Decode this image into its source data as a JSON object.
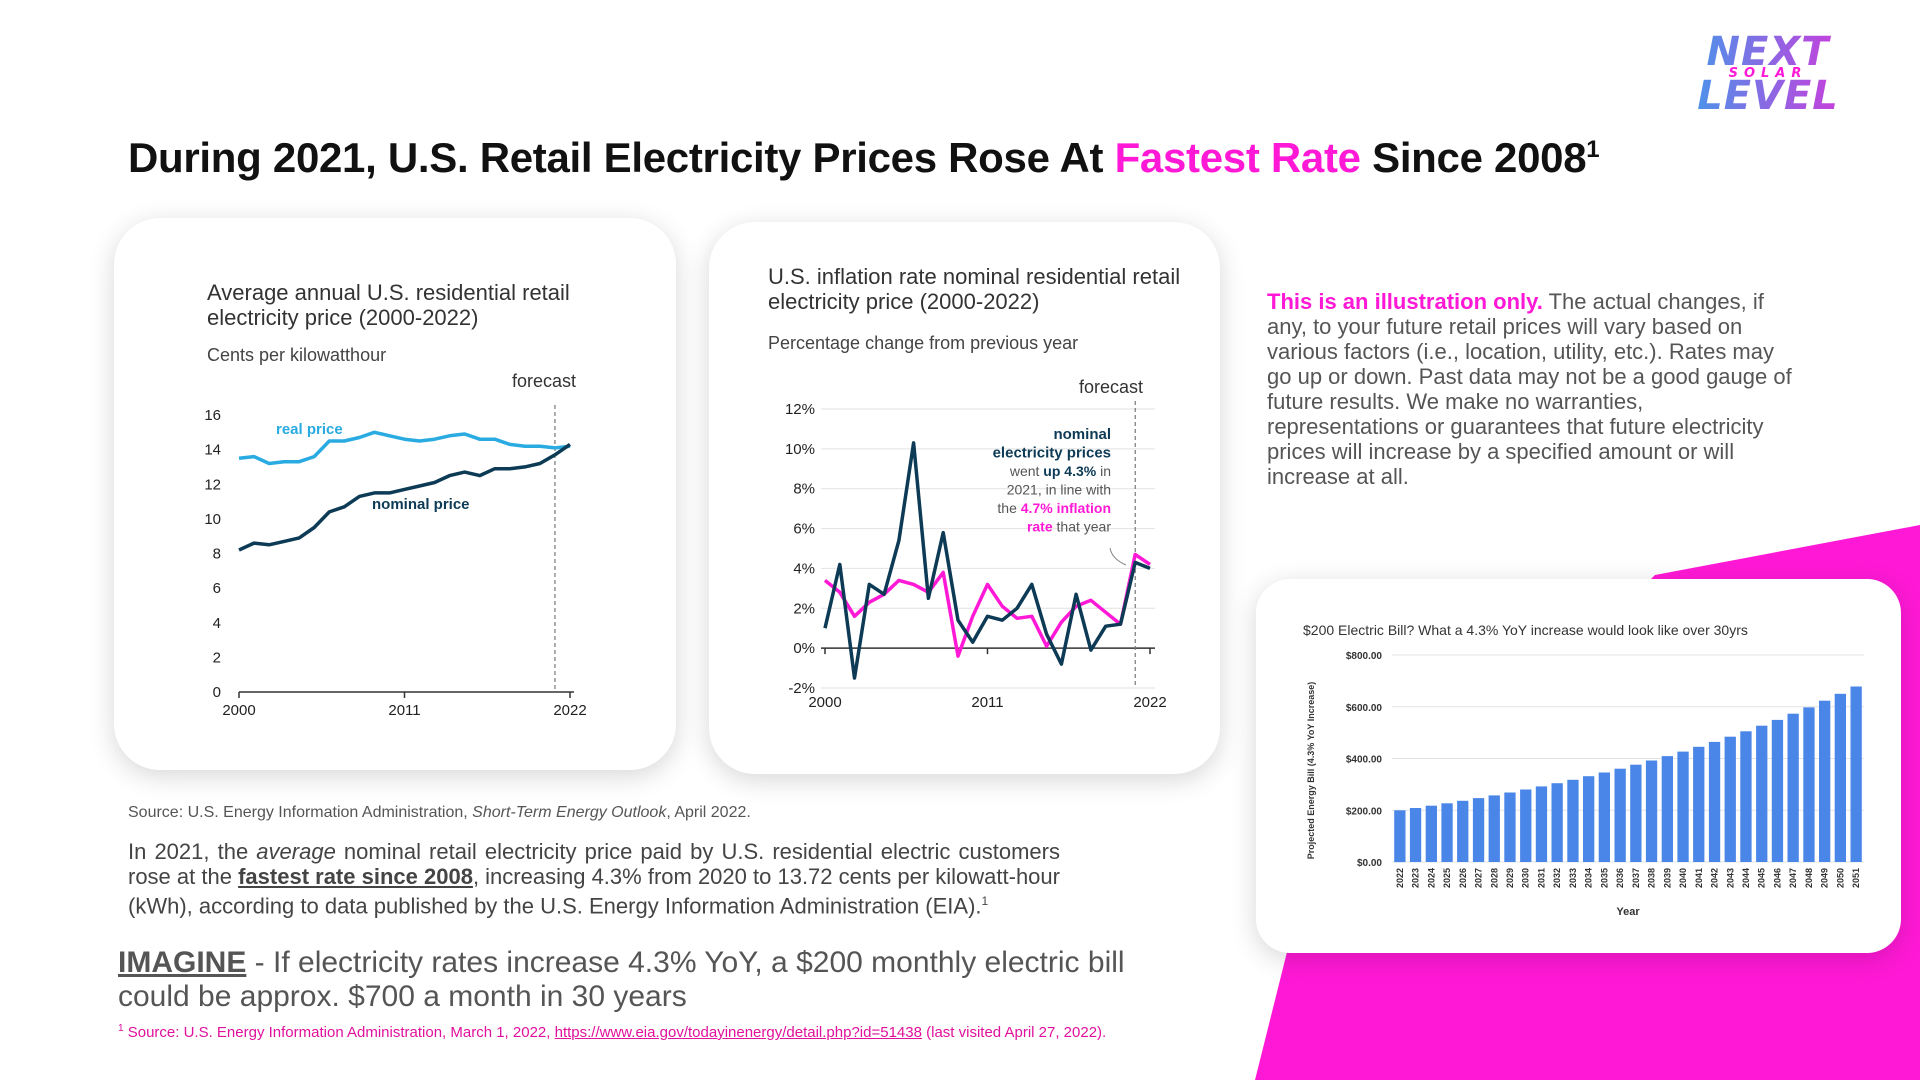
{
  "brand": {
    "name": "NEXT LEVEL",
    "sub": "SOLAR"
  },
  "headline": {
    "pre": "During 2021, U.S. Retail Electricity Prices Rose At ",
    "highlight": "Fastest Rate",
    "post": " Since 2008",
    "sup": "1"
  },
  "colors": {
    "accent": "#ff19d6",
    "real_price": "#29abe2",
    "nominal": "#0d3a55",
    "bars": "#4a86e8",
    "footnote": "#e0119d"
  },
  "chart_data": [
    {
      "type": "line",
      "title": "Average annual U.S. residential retail electricity price (2000-2022)",
      "subtitle": "Cents per kilowatthour",
      "annotation": "forecast",
      "xticks": [
        "2000",
        "2011",
        "2022"
      ],
      "ylim": [
        0,
        16
      ],
      "yticks": [
        0,
        2,
        4,
        6,
        8,
        10,
        12,
        14,
        16
      ],
      "x": [
        2000,
        2001,
        2002,
        2003,
        2004,
        2005,
        2006,
        2007,
        2008,
        2009,
        2010,
        2011,
        2012,
        2013,
        2014,
        2015,
        2016,
        2017,
        2018,
        2019,
        2020,
        2021,
        2022
      ],
      "series": [
        {
          "name": "real price",
          "values": [
            13.5,
            13.6,
            13.2,
            13.3,
            13.3,
            13.6,
            14.5,
            14.5,
            14.7,
            15.0,
            14.8,
            14.6,
            14.5,
            14.6,
            14.8,
            14.9,
            14.6,
            14.6,
            14.3,
            14.2,
            14.2,
            14.1,
            14.2
          ]
        },
        {
          "name": "nominal price",
          "values": [
            8.2,
            8.6,
            8.5,
            8.7,
            8.9,
            9.5,
            10.4,
            10.7,
            11.3,
            11.5,
            11.5,
            11.7,
            11.9,
            12.1,
            12.5,
            12.7,
            12.5,
            12.9,
            12.9,
            13.0,
            13.2,
            13.7,
            14.3
          ]
        }
      ],
      "grid": false,
      "forecast_from": 2021
    },
    {
      "type": "line",
      "title": "U.S. inflation rate nominal residential retail electricity price (2000-2022)",
      "subtitle": "Percentage change from previous year",
      "annotation": "forecast",
      "xticks": [
        "2000",
        "2011",
        "2022"
      ],
      "ylim": [
        -2,
        12
      ],
      "yticks": [
        "-2%",
        "0%",
        "2%",
        "4%",
        "6%",
        "8%",
        "10%",
        "12%"
      ],
      "x": [
        2000,
        2001,
        2002,
        2003,
        2004,
        2005,
        2006,
        2007,
        2008,
        2009,
        2010,
        2011,
        2012,
        2013,
        2014,
        2015,
        2016,
        2017,
        2018,
        2019,
        2020,
        2021,
        2022
      ],
      "series": [
        {
          "name": "nominal electricity prices",
          "values": [
            1.0,
            4.2,
            -1.5,
            3.2,
            2.7,
            5.4,
            10.3,
            2.5,
            5.8,
            1.4,
            0.3,
            1.6,
            1.4,
            2.0,
            3.2,
            0.7,
            -0.8,
            2.7,
            -0.1,
            1.1,
            1.2,
            4.3,
            4.0
          ]
        },
        {
          "name": "inflation rate",
          "values": [
            3.4,
            2.8,
            1.6,
            2.3,
            2.7,
            3.4,
            3.2,
            2.8,
            3.8,
            -0.4,
            1.6,
            3.2,
            2.1,
            1.5,
            1.6,
            0.1,
            1.3,
            2.1,
            2.4,
            1.8,
            1.2,
            4.7,
            4.2
          ]
        }
      ],
      "callout": {
        "l1": "nominal",
        "l2": "electricity prices",
        "l3a": "went ",
        "l3b": "up 4.3%",
        "l3c": " in",
        "l4": "2021, in line with",
        "l5a": "the ",
        "l5b": "4.7% inflation",
        "l6a": "rate",
        "l6b": " that year"
      },
      "grid": true,
      "forecast_from": 2021
    },
    {
      "type": "bar",
      "title": "$200 Electric Bill? What a 4.3% YoY increase would look like over 30yrs",
      "xlabel": "Year",
      "ylabel": "Projected Energy Bill (4.3% YoY Increase)",
      "ylim": [
        0,
        800
      ],
      "yticks": [
        "$0.00",
        "$200.00",
        "$400.00",
        "$600.00",
        "$800.00"
      ],
      "categories": [
        "2022",
        "2023",
        "2024",
        "2025",
        "2026",
        "2027",
        "2028",
        "2029",
        "2030",
        "2031",
        "2032",
        "2033",
        "2034",
        "2035",
        "2036",
        "2037",
        "2038",
        "2039",
        "2040",
        "2041",
        "2042",
        "2043",
        "2044",
        "2045",
        "2046",
        "2047",
        "2048",
        "2049",
        "2050",
        "2051"
      ],
      "values": [
        200.0,
        208.6,
        217.57,
        226.93,
        236.69,
        246.86,
        257.48,
        268.55,
        280.1,
        292.14,
        304.7,
        317.81,
        331.47,
        345.73,
        360.59,
        376.1,
        392.27,
        409.14,
        426.73,
        445.08,
        464.22,
        484.18,
        505.0,
        526.72,
        549.37,
        572.99,
        597.63,
        623.33,
        650.13,
        678.09
      ]
    }
  ],
  "source_line": {
    "pre": "Source: U.S. Energy Information Administration, ",
    "em": "Short-Term Energy Outlook",
    "post": ", April 2022."
  },
  "paragraph": {
    "p1": "In 2021, the ",
    "em": "average",
    "p2": " nominal retail electricity price paid by U.S. residential electric customers rose at the ",
    "u": "fastest rate since 2008",
    "p3": ", increasing 4.3% from 2020 to 13.72 cents per kilowatt-hour (kWh), according to data published by the U.S. Energy Information Administration (EIA).",
    "sup": "1"
  },
  "imagine": {
    "head": "IMAGINE",
    "body": " - If electricity rates increase 4.3% YoY, a $200 monthly electric bill could be approx. $700 a month in 30 years"
  },
  "footnote": {
    "sup": "1",
    "pre": " Source: U.S. Energy Information Administration, March 1, 2022, ",
    "link": "https://www.eia.gov/todayinenergy/detail.php?id=51438",
    "post": " (last visited April 27, 2022)."
  },
  "disclaimer": {
    "lead": "This is an illustration only.",
    "body": " The actual changes, if any, to your future retail prices will vary based on various factors (i.e., location, utility, etc.). Rates may go up or down. Past data may not be a good gauge of future results. We make no warranties, representations or guarantees that future electricity prices will increase by a specified amount or will increase at all."
  }
}
